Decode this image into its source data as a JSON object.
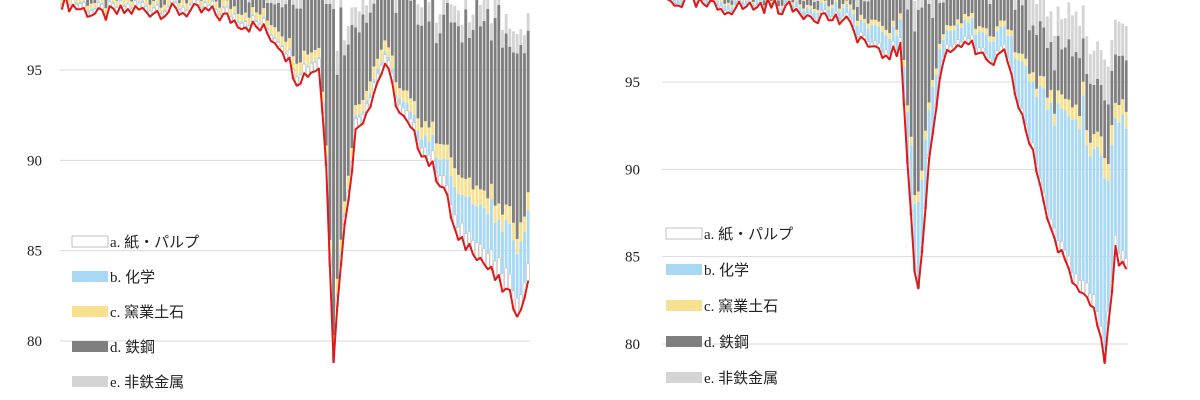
{
  "colors": {
    "a": "#ffffff",
    "b": "#a9d8f5",
    "c": "#f7e08e",
    "d": "#7f7f7f",
    "e": "#d4d4d4",
    "total": "#e01818",
    "grid": "#d9d9d9"
  },
  "chart_data": [
    {
      "type": "bar",
      "stacked": true,
      "overlay": "line",
      "ylim": [
        78,
        99
      ],
      "yticks": [
        95,
        90,
        85,
        80
      ],
      "grid": true,
      "legend_position": "bottom-left",
      "series": [
        {
          "key": "a",
          "name": "a. 紙・パルプ"
        },
        {
          "key": "b",
          "name": "b. 化学"
        },
        {
          "key": "c",
          "name": "c. 窯業土石"
        },
        {
          "key": "d",
          "name": "d. 鉄鋼"
        },
        {
          "key": "e",
          "name": "e. 非鉄金属"
        }
      ],
      "keypoints": [
        {
          "i": 0,
          "line": 98.8,
          "a": 0.3,
          "b": 0.1,
          "c": 0.3,
          "d": 0.5,
          "e": 0.4
        },
        {
          "i": 10,
          "line": 98.0,
          "a": 0.3,
          "b": 0.1,
          "c": 0.3,
          "d": 0.6,
          "e": 0.5
        },
        {
          "i": 20,
          "line": 98.3,
          "a": 0.3,
          "b": 0.1,
          "c": 0.3,
          "d": 0.6,
          "e": 0.5
        },
        {
          "i": 40,
          "line": 98.2,
          "a": 0.3,
          "b": 0.1,
          "c": 0.3,
          "d": 0.6,
          "e": 0.5
        },
        {
          "i": 55,
          "line": 97.2,
          "a": 0.3,
          "b": 0.1,
          "c": 0.4,
          "d": 1.0,
          "e": 0.7
        },
        {
          "i": 60,
          "line": 96.3,
          "a": 0.3,
          "b": 0.1,
          "c": 0.5,
          "d": 1.5,
          "e": 0.8
        },
        {
          "i": 64,
          "line": 94.5,
          "a": 0.5,
          "b": 0.1,
          "c": 0.6,
          "d": 3.0,
          "e": 1.0
        },
        {
          "i": 70,
          "line": 95.2,
          "a": 0.5,
          "b": 0.1,
          "c": 0.5,
          "d": 3.5,
          "e": 1.0
        },
        {
          "i": 72,
          "line": 90.0,
          "a": 0.5,
          "b": 0.1,
          "c": 0.5,
          "d": 7.0,
          "e": 1.0
        },
        {
          "i": 74,
          "line": 79.1,
          "a": 0.6,
          "b": 0.2,
          "c": 0.8,
          "d": 16.0,
          "e": 1.3
        },
        {
          "i": 76,
          "line": 84.5,
          "a": 0.6,
          "b": 0.2,
          "c": 0.7,
          "d": 11.0,
          "e": 1.0
        },
        {
          "i": 80,
          "line": 91.5,
          "a": 0.5,
          "b": 0.2,
          "c": 0.6,
          "d": 5.0,
          "e": 1.0
        },
        {
          "i": 84,
          "line": 93.3,
          "a": 0.5,
          "b": 0.2,
          "c": 0.6,
          "d": 3.8,
          "e": 1.0
        },
        {
          "i": 88,
          "line": 95.4,
          "a": 0.5,
          "b": 0.2,
          "c": 0.6,
          "d": 3.2,
          "e": 1.0
        },
        {
          "i": 92,
          "line": 92.6,
          "a": 0.5,
          "b": 0.3,
          "c": 0.6,
          "d": 4.5,
          "e": 1.0
        },
        {
          "i": 98,
          "line": 90.6,
          "a": 0.5,
          "b": 0.5,
          "c": 0.7,
          "d": 6.0,
          "e": 1.0
        },
        {
          "i": 104,
          "line": 88.5,
          "a": 0.6,
          "b": 1.0,
          "c": 0.8,
          "d": 7.0,
          "e": 1.0
        },
        {
          "i": 108,
          "line": 85.4,
          "a": 0.8,
          "b": 1.8,
          "c": 1.0,
          "d": 9.0,
          "e": 1.0
        },
        {
          "i": 112,
          "line": 85.2,
          "a": 0.8,
          "b": 2.0,
          "c": 1.0,
          "d": 9.0,
          "e": 1.0
        },
        {
          "i": 116,
          "line": 84.0,
          "a": 0.9,
          "b": 2.3,
          "c": 1.0,
          "d": 9.5,
          "e": 1.0
        },
        {
          "i": 122,
          "line": 82.4,
          "a": 1.0,
          "b": 2.8,
          "c": 1.0,
          "d": 10.0,
          "e": 1.0
        },
        {
          "i": 125,
          "line": 81.5,
          "a": 1.0,
          "b": 3.0,
          "c": 1.0,
          "d": 10.0,
          "e": 1.0
        },
        {
          "i": 127,
          "line": 83.6,
          "a": 1.0,
          "b": 2.8,
          "c": 1.0,
          "d": 9.5,
          "e": 1.0
        }
      ],
      "bar_count": 128
    },
    {
      "type": "bar",
      "stacked": true,
      "overlay": "line",
      "ylim": [
        79,
        99.6
      ],
      "yticks": [
        95,
        90,
        85,
        80
      ],
      "grid": true,
      "legend_position": "bottom-left",
      "series": [
        {
          "key": "a",
          "name": "a. 紙・パルプ"
        },
        {
          "key": "b",
          "name": "b. 化学"
        },
        {
          "key": "c",
          "name": "c. 窯業土石"
        },
        {
          "key": "d",
          "name": "d. 鉄鋼"
        },
        {
          "key": "e",
          "name": "e. 非鉄金属"
        }
      ],
      "keypoints": [
        {
          "i": 0,
          "line": 99.7,
          "a": 0.1,
          "b": 0.2,
          "c": 0.1,
          "d": 0.2,
          "e": 0.2
        },
        {
          "i": 16,
          "line": 99.2,
          "a": 0.2,
          "b": 0.3,
          "c": 0.1,
          "d": 0.3,
          "e": 0.3
        },
        {
          "i": 30,
          "line": 99.4,
          "a": 0.1,
          "b": 0.2,
          "c": 0.1,
          "d": 0.3,
          "e": 0.3
        },
        {
          "i": 50,
          "line": 98.5,
          "a": 0.2,
          "b": 0.5,
          "c": 0.2,
          "d": 0.6,
          "e": 0.6
        },
        {
          "i": 60,
          "line": 96.5,
          "a": 0.3,
          "b": 1.0,
          "c": 0.3,
          "d": 1.5,
          "e": 0.8
        },
        {
          "i": 66,
          "line": 96.8,
          "a": 0.3,
          "b": 1.0,
          "c": 0.3,
          "d": 2.0,
          "e": 1.0
        },
        {
          "i": 70,
          "line": 84.5,
          "a": 0.3,
          "b": 4.0,
          "c": 0.5,
          "d": 9.0,
          "e": 1.5
        },
        {
          "i": 71,
          "line": 82.8,
          "a": 0.3,
          "b": 5.0,
          "c": 0.5,
          "d": 10.0,
          "e": 1.5
        },
        {
          "i": 74,
          "line": 90.5,
          "a": 0.3,
          "b": 3.0,
          "c": 0.4,
          "d": 5.0,
          "e": 1.5
        },
        {
          "i": 78,
          "line": 96.5,
          "a": 0.3,
          "b": 1.0,
          "c": 0.3,
          "d": 2.0,
          "e": 1.5
        },
        {
          "i": 84,
          "line": 97.5,
          "a": 0.3,
          "b": 0.8,
          "c": 0.3,
          "d": 1.5,
          "e": 1.5
        },
        {
          "i": 90,
          "line": 96.0,
          "a": 0.3,
          "b": 1.0,
          "c": 0.3,
          "d": 2.0,
          "e": 1.6
        },
        {
          "i": 95,
          "line": 96.5,
          "a": 0.3,
          "b": 1.0,
          "c": 0.3,
          "d": 2.0,
          "e": 1.6
        },
        {
          "i": 100,
          "line": 93.0,
          "a": 0.3,
          "b": 2.5,
          "c": 0.4,
          "d": 3.0,
          "e": 1.6
        },
        {
          "i": 104,
          "line": 90.0,
          "a": 0.4,
          "b": 4.0,
          "c": 0.5,
          "d": 3.0,
          "e": 1.8
        },
        {
          "i": 108,
          "line": 86.5,
          "a": 0.6,
          "b": 6.5,
          "c": 0.7,
          "d": 3.0,
          "e": 2.0
        },
        {
          "i": 112,
          "line": 84.5,
          "a": 0.6,
          "b": 8.0,
          "c": 0.8,
          "d": 3.0,
          "e": 2.0
        },
        {
          "i": 116,
          "line": 83.0,
          "a": 0.7,
          "b": 9.0,
          "c": 0.9,
          "d": 3.0,
          "e": 2.0
        },
        {
          "i": 120,
          "line": 82.5,
          "a": 0.7,
          "b": 9.5,
          "c": 0.9,
          "d": 3.0,
          "e": 2.0
        },
        {
          "i": 123,
          "line": 79.3,
          "a": 0.8,
          "b": 10.0,
          "c": 1.2,
          "d": 3.5,
          "e": 2.0
        },
        {
          "i": 126,
          "line": 85.2,
          "a": 0.7,
          "b": 7.0,
          "c": 1.0,
          "d": 3.0,
          "e": 2.0
        },
        {
          "i": 129,
          "line": 84.0,
          "a": 0.7,
          "b": 7.5,
          "c": 1.0,
          "d": 3.0,
          "e": 2.0
        }
      ],
      "bar_count": 130
    }
  ]
}
